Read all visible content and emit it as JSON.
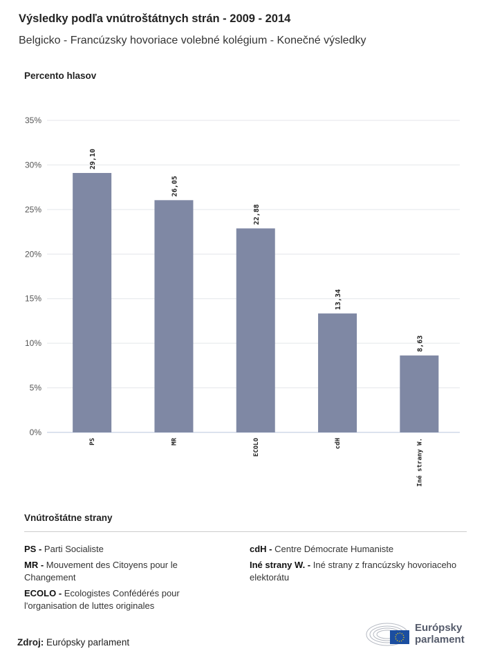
{
  "header": {
    "title": "Výsledky podľa vnútroštátnych strán - 2009 - 2014",
    "subtitle": "Belgicko - Francúzsky hovoriace volebné kolégium - Konečné výsledky"
  },
  "chart_data": {
    "type": "bar",
    "ylabel": "Percento hlasov",
    "xlabel": "Vnútroštátne strany",
    "categories": [
      "PS",
      "MR",
      "ECOLO",
      "cdH",
      "Iné strany W."
    ],
    "values": [
      29.1,
      26.05,
      22.88,
      13.34,
      8.63
    ],
    "data_labels": [
      "29,10",
      "26,05",
      "22,88",
      "13,34",
      "8,63"
    ],
    "ylim": [
      0,
      35
    ],
    "yticks": [
      "0%",
      "5%",
      "10%",
      "15%",
      "20%",
      "25%",
      "30%",
      "35%"
    ],
    "grid": true,
    "bar_color": "#7f88a4"
  },
  "legend": {
    "title": "Vnútroštátne strany",
    "items": [
      {
        "abbr": "PS -",
        "name": "Parti Socialiste"
      },
      {
        "abbr": "MR -",
        "name": "Mouvement des Citoyens pour le Changement"
      },
      {
        "abbr": "ECOLO -",
        "name": "Ecologistes Confédérés pour l'organisation de luttes originales"
      },
      {
        "abbr": "cdH -",
        "name": "Centre Démocrate Humaniste"
      },
      {
        "abbr": "Iné strany W. -",
        "name": "Iné strany z francúzsky hovoriaceho elektorátu"
      }
    ]
  },
  "footer": {
    "source_label": "Zdroj:",
    "source": "Európsky parlament",
    "logo_line1": "Európsky",
    "logo_line2": "parlament"
  }
}
